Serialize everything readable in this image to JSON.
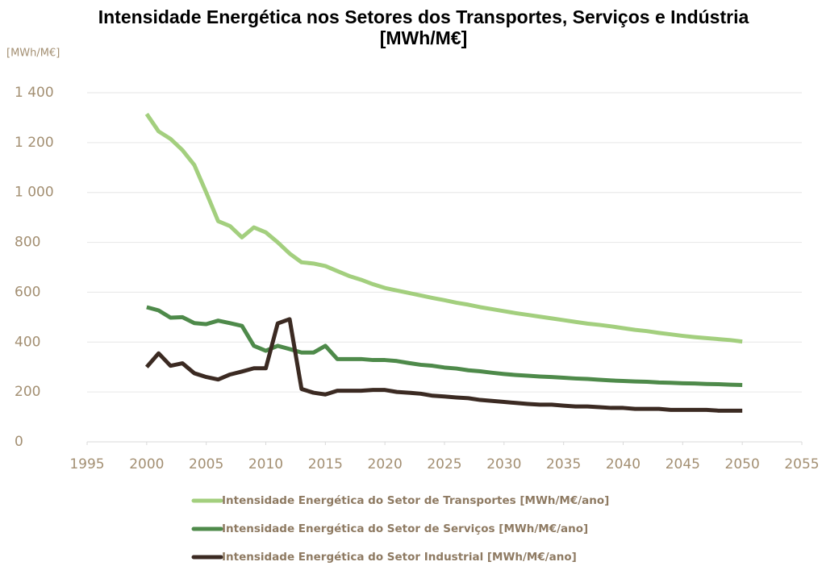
{
  "chart_data": {
    "type": "line",
    "title": "Intensidade Energética nos Setores dos Transportes, Serviços e Indústria [MWh/M€]",
    "y_label": "[MWh/M€]",
    "x": [
      2000,
      2001,
      2002,
      2003,
      2004,
      2005,
      2006,
      2007,
      2008,
      2009,
      2010,
      2011,
      2012,
      2013,
      2014,
      2015,
      2016,
      2017,
      2018,
      2019,
      2020,
      2021,
      2022,
      2023,
      2024,
      2025,
      2026,
      2027,
      2028,
      2029,
      2030,
      2031,
      2032,
      2033,
      2034,
      2035,
      2036,
      2037,
      2038,
      2039,
      2040,
      2041,
      2042,
      2043,
      2044,
      2045,
      2046,
      2047,
      2048,
      2049,
      2050
    ],
    "series": [
      {
        "name": "Intensidade Energética do Setor de Transportes [MWh/M€/ano]",
        "color": "#a3cf7e",
        "values": [
          1315,
          1245,
          1215,
          1170,
          1110,
          1000,
          885,
          865,
          820,
          860,
          840,
          800,
          755,
          720,
          715,
          705,
          685,
          665,
          650,
          632,
          617,
          607,
          597,
          587,
          577,
          568,
          558,
          550,
          540,
          532,
          524,
          516,
          509,
          502,
          495,
          488,
          481,
          474,
          469,
          463,
          456,
          449,
          444,
          437,
          431,
          425,
          420,
          416,
          412,
          408,
          402
        ]
      },
      {
        "name": "Intensidade Energética do Setor de Serviços [MWh/M€/ano]",
        "color": "#4e8a4a",
        "values": [
          540,
          527,
          498,
          500,
          476,
          472,
          486,
          476,
          465,
          385,
          365,
          385,
          372,
          358,
          358,
          385,
          332,
          332,
          332,
          328,
          328,
          324,
          316,
          309,
          305,
          298,
          294,
          287,
          283,
          277,
          272,
          268,
          265,
          262,
          260,
          257,
          254,
          252,
          249,
          246,
          244,
          242,
          241,
          238,
          237,
          235,
          234,
          232,
          231,
          229,
          228
        ]
      },
      {
        "name": "Intensidade Energética do Setor Industrial [MWh/M€/ano]",
        "color": "#3b2a22",
        "values": [
          300,
          355,
          305,
          315,
          275,
          260,
          250,
          270,
          282,
          295,
          295,
          475,
          492,
          212,
          197,
          190,
          205,
          205,
          205,
          208,
          208,
          200,
          197,
          193,
          185,
          182,
          178,
          175,
          168,
          164,
          160,
          156,
          152,
          149,
          149,
          145,
          142,
          142,
          139,
          136,
          136,
          132,
          132,
          132,
          128,
          128,
          128,
          128,
          125,
          125,
          125
        ]
      }
    ],
    "xlim": [
      1995,
      2055
    ],
    "xticks": [
      1995,
      2000,
      2005,
      2010,
      2015,
      2020,
      2025,
      2030,
      2035,
      2040,
      2045,
      2050,
      2055
    ],
    "ylim": [
      0,
      1400
    ],
    "yticks": [
      0,
      200,
      400,
      600,
      800,
      {
        "value": 1000,
        "label": "1 000"
      },
      {
        "value": 1200,
        "label": "1 200"
      },
      {
        "value": 1400,
        "label": "1 400"
      }
    ],
    "grid": true,
    "legend": "bottom"
  }
}
